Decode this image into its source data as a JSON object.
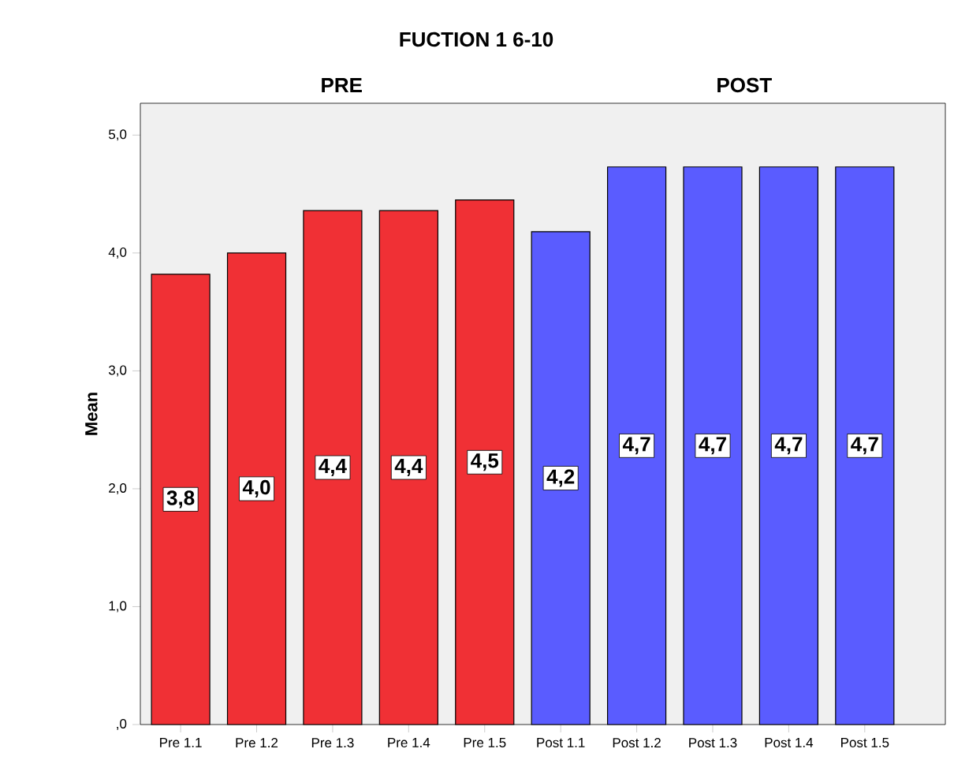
{
  "chart_data": {
    "type": "bar",
    "title": "FUCTION 1 6-10",
    "ylabel": "Mean",
    "annotations": [
      "PRE",
      "POST"
    ],
    "categories": [
      "Pre 1.1",
      "Pre 1.2",
      "Pre 1.3",
      "Pre 1.4",
      "Pre 1.5",
      "Post 1.1",
      "Post 1.2",
      "Post 1.3",
      "Post 1.4",
      "Post 1.5"
    ],
    "values": [
      3.82,
      4.0,
      4.36,
      4.36,
      4.45,
      4.18,
      4.73,
      4.73,
      4.73,
      4.73
    ],
    "value_labels": [
      "3,8",
      "4,0",
      "4,4",
      "4,4",
      "4,5",
      "4,2",
      "4,7",
      "4,7",
      "4,7",
      "4,7"
    ],
    "colors": [
      "#f03035",
      "#f03035",
      "#f03035",
      "#f03035",
      "#f03035",
      "#5a5cff",
      "#5a5cff",
      "#5a5cff",
      "#5a5cff",
      "#5a5cff"
    ],
    "ylim": [
      0,
      5.27
    ],
    "yticks": [
      {
        "value": 0,
        "label": ",0"
      },
      {
        "value": 1,
        "label": "1,0"
      },
      {
        "value": 2,
        "label": "2,0"
      },
      {
        "value": 3,
        "label": "3,0"
      },
      {
        "value": 4,
        "label": "4,0"
      },
      {
        "value": 5,
        "label": "5,0"
      }
    ],
    "grid": false
  }
}
